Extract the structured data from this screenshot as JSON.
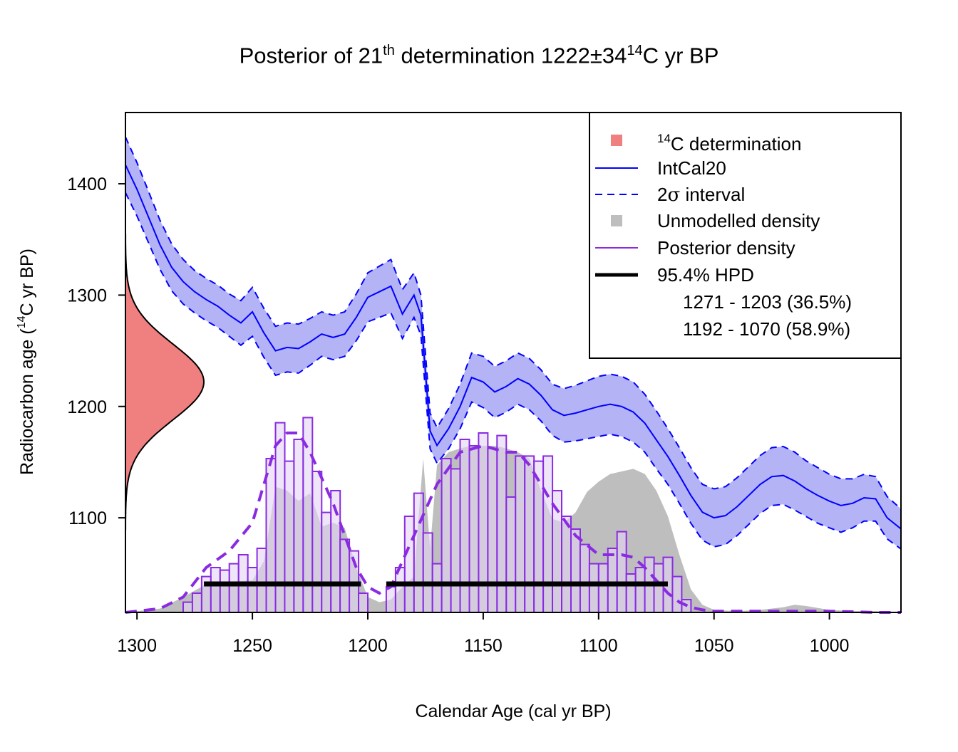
{
  "chart_data": {
    "type": "area",
    "title": {
      "prefix": "Posterior of 21",
      "prefix_sup": "th",
      "middle": " determination 1222±34",
      "middle_sup": "14",
      "suffix": "C yr BP"
    },
    "xlabel": "Calendar Age (cal yr BP)",
    "ylabel": {
      "prefix": "Radiocarbon age (",
      "sup": "14",
      "suffix": "C yr BP)"
    },
    "xlim": [
      1305,
      969
    ],
    "ylim": [
      1015,
      1464
    ],
    "xticks": [
      1300,
      1250,
      1200,
      1150,
      1100,
      1050,
      1000
    ],
    "yticks": [
      1100,
      1200,
      1300,
      1400
    ],
    "determination": {
      "mean": 1222,
      "sd": 34
    },
    "intcal20": {
      "x": [
        1305,
        1300,
        1295,
        1290,
        1285,
        1280,
        1275,
        1270,
        1265,
        1260,
        1255,
        1250,
        1245,
        1240,
        1235,
        1230,
        1225,
        1220,
        1215,
        1210,
        1205,
        1200,
        1195,
        1190,
        1185,
        1180,
        1177,
        1173,
        1170,
        1165,
        1160,
        1155,
        1150,
        1145,
        1140,
        1135,
        1130,
        1125,
        1120,
        1115,
        1110,
        1105,
        1100,
        1095,
        1090,
        1085,
        1080,
        1075,
        1070,
        1065,
        1060,
        1055,
        1050,
        1045,
        1040,
        1035,
        1030,
        1025,
        1020,
        1015,
        1010,
        1005,
        1000,
        995,
        990,
        985,
        980,
        975,
        969
      ],
      "mean": [
        1417,
        1395,
        1370,
        1345,
        1325,
        1312,
        1303,
        1296,
        1290,
        1282,
        1275,
        1285,
        1266,
        1250,
        1253,
        1252,
        1258,
        1265,
        1262,
        1265,
        1280,
        1298,
        1303,
        1308,
        1283,
        1300,
        1282,
        1178,
        1165,
        1180,
        1200,
        1226,
        1222,
        1213,
        1218,
        1225,
        1220,
        1210,
        1197,
        1192,
        1194,
        1197,
        1200,
        1202,
        1200,
        1195,
        1185,
        1170,
        1155,
        1138,
        1120,
        1105,
        1100,
        1102,
        1110,
        1120,
        1130,
        1137,
        1138,
        1133,
        1126,
        1120,
        1115,
        1111,
        1113,
        1118,
        1117,
        1100,
        1090
      ],
      "sigma2": [
        25,
        24,
        23,
        22,
        21,
        20,
        19,
        19,
        19,
        19,
        20,
        22,
        22,
        22,
        22,
        22,
        21,
        20,
        20,
        20,
        21,
        22,
        23,
        24,
        22,
        20,
        18,
        16,
        16,
        18,
        20,
        22,
        23,
        23,
        23,
        23,
        23,
        23,
        23,
        24,
        25,
        26,
        27,
        27,
        27,
        27,
        26,
        26,
        25,
        25,
        25,
        25,
        26,
        26,
        26,
        26,
        26,
        26,
        26,
        26,
        25,
        25,
        24,
        24,
        22,
        21,
        20,
        19,
        18
      ]
    },
    "unmodelled_density": {
      "x": [
        1305,
        1290,
        1280,
        1270,
        1260,
        1250,
        1245,
        1240,
        1235,
        1230,
        1225,
        1220,
        1215,
        1210,
        1205,
        1200,
        1195,
        1190,
        1185,
        1180,
        1176,
        1173,
        1170,
        1165,
        1160,
        1155,
        1150,
        1145,
        1140,
        1135,
        1130,
        1125,
        1120,
        1115,
        1110,
        1105,
        1100,
        1095,
        1090,
        1085,
        1080,
        1075,
        1070,
        1065,
        1060,
        1055,
        1050,
        1040,
        1030,
        1020,
        1015,
        1010,
        1000,
        990,
        980,
        969
      ],
      "y": [
        0,
        0.003,
        0.012,
        0.022,
        0.024,
        0.025,
        0.04,
        0.098,
        0.095,
        0.087,
        0.093,
        0.067,
        0.07,
        0.066,
        0.035,
        0.012,
        0.008,
        0.01,
        0.02,
        0.028,
        0.12,
        0.05,
        0.115,
        0.125,
        0.128,
        0.13,
        0.13,
        0.13,
        0.128,
        0.125,
        0.12,
        0.095,
        0.073,
        0.07,
        0.078,
        0.094,
        0.102,
        0.108,
        0.11,
        0.112,
        0.108,
        0.095,
        0.075,
        0.045,
        0.018,
        0.006,
        0.002,
        0.001,
        0.002,
        0.004,
        0.006,
        0.005,
        0.002,
        0.001,
        0.001,
        0
      ]
    },
    "posterior_density": {
      "x": [
        1305,
        1290,
        1280,
        1270,
        1260,
        1250,
        1245,
        1240,
        1235,
        1230,
        1225,
        1220,
        1215,
        1210,
        1205,
        1200,
        1195,
        1190,
        1180,
        1170,
        1160,
        1150,
        1140,
        1135,
        1130,
        1120,
        1110,
        1100,
        1090,
        1085,
        1080,
        1075,
        1070,
        1065,
        1060,
        1055,
        1050,
        1040,
        1020,
        1000,
        980,
        969
      ],
      "y": [
        0,
        0.003,
        0.012,
        0.035,
        0.048,
        0.07,
        0.1,
        0.13,
        0.14,
        0.14,
        0.125,
        0.105,
        0.085,
        0.06,
        0.035,
        0.02,
        0.015,
        0.02,
        0.06,
        0.1,
        0.125,
        0.13,
        0.125,
        0.125,
        0.115,
        0.085,
        0.06,
        0.045,
        0.045,
        0.043,
        0.035,
        0.025,
        0.015,
        0.008,
        0.004,
        0.002,
        0.001,
        0.001,
        0.001,
        0.001,
        0,
        0
      ]
    },
    "posterior_histogram": {
      "bin_width": 4,
      "bin_starts": [
        1280,
        1276,
        1272,
        1268,
        1264,
        1260,
        1256,
        1252,
        1248,
        1244,
        1240,
        1236,
        1232,
        1228,
        1224,
        1220,
        1216,
        1212,
        1208,
        1204,
        1192,
        1188,
        1184,
        1180,
        1176,
        1172,
        1168,
        1164,
        1160,
        1156,
        1152,
        1148,
        1144,
        1140,
        1136,
        1132,
        1128,
        1124,
        1120,
        1116,
        1112,
        1108,
        1104,
        1100,
        1096,
        1092,
        1088,
        1084,
        1080,
        1076,
        1072,
        1068,
        1064
      ],
      "heights": [
        0.008,
        0.015,
        0.028,
        0.035,
        0.033,
        0.038,
        0.045,
        0.035,
        0.05,
        0.12,
        0.148,
        0.118,
        0.135,
        0.152,
        0.11,
        0.078,
        0.095,
        0.057,
        0.048,
        0.015,
        0.02,
        0.035,
        0.075,
        0.093,
        0.062,
        0.038,
        0.12,
        0.112,
        0.135,
        0.13,
        0.14,
        0.128,
        0.138,
        0.09,
        0.122,
        0.122,
        0.118,
        0.122,
        0.095,
        0.075,
        0.065,
        0.053,
        0.038,
        0.038,
        0.05,
        0.063,
        0.03,
        0.035,
        0.043,
        0.038,
        0.043,
        0.028,
        0.01
      ]
    },
    "hpd": {
      "level": "95.4% HPD",
      "intervals": [
        {
          "from": 1271,
          "to": 1203,
          "label": "1271 - 1203 (36.5%)"
        },
        {
          "from": 1192,
          "to": 1070,
          "label": "1192 - 1070 (58.9%)"
        }
      ]
    },
    "legend": {
      "position": "top-right",
      "items": {
        "determination_sup": "14",
        "determination_suffix": "C determination",
        "intcal20": "IntCal20",
        "interval_prefix": "2",
        "interval_symbol": "σ",
        "interval_suffix": " interval",
        "unmodelled": "Unmodelled density",
        "posterior": "Posterior density",
        "hpd": "95.4% HPD"
      }
    },
    "colors": {
      "determination": "#F08080",
      "intcal_line": "#0000FF",
      "intcal_band": "#B3B3F5",
      "unmodelled": "#BEBEBE",
      "posterior": "#8A2BE2",
      "posterior_hist_fill": "#E3D3F5",
      "hpd": "#000000"
    }
  }
}
